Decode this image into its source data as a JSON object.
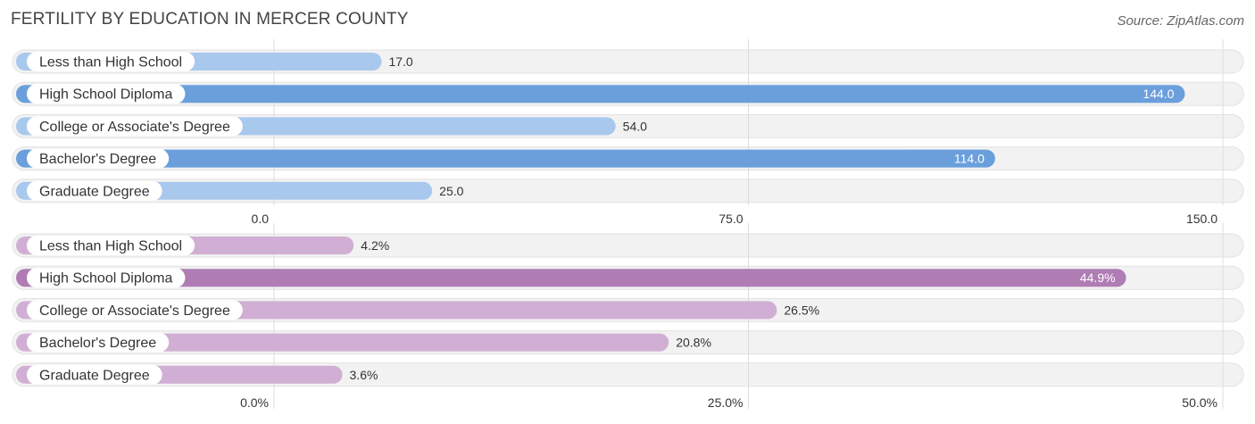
{
  "title": "FERTILITY BY EDUCATION IN MERCER COUNTY",
  "source": "Source: ZipAtlas.com",
  "chart_data": [
    {
      "type": "bar",
      "orientation": "horizontal",
      "categories": [
        "Less than High School",
        "High School Diploma",
        "College or Associate's Degree",
        "Bachelor's Degree",
        "Graduate Degree"
      ],
      "values": [
        17.0,
        144.0,
        54.0,
        114.0,
        25.0
      ],
      "value_labels": [
        "17.0",
        "144.0",
        "54.0",
        "114.0",
        "25.0"
      ],
      "xlim": [
        0,
        150
      ],
      "ticks": [
        0,
        75,
        150
      ],
      "tick_labels": [
        "0.0",
        "75.0",
        "150.0"
      ],
      "colors": {
        "strong": "#6a9fdc",
        "light": "#a9c8ee"
      },
      "grid": true
    },
    {
      "type": "bar",
      "orientation": "horizontal",
      "categories": [
        "Less than High School",
        "High School Diploma",
        "College or Associate's Degree",
        "Bachelor's Degree",
        "Graduate Degree"
      ],
      "values": [
        4.2,
        44.9,
        26.5,
        20.8,
        3.6
      ],
      "value_labels": [
        "4.2%",
        "44.9%",
        "26.5%",
        "20.8%",
        "3.6%"
      ],
      "xlim": [
        0,
        50
      ],
      "ticks": [
        0,
        25,
        50
      ],
      "tick_labels": [
        "0.0%",
        "25.0%",
        "50.0%"
      ],
      "colors": {
        "strong": "#b07cb4",
        "light": "#d1afd4"
      },
      "grid": true
    }
  ]
}
